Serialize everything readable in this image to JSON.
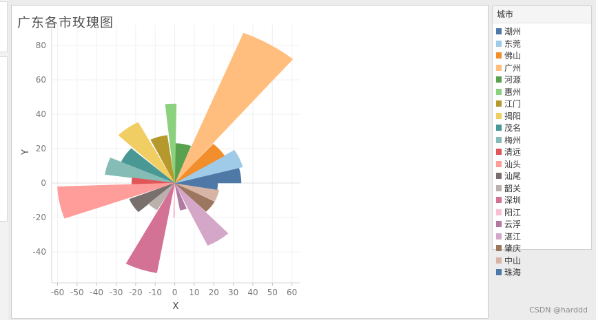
{
  "chart_data": {
    "type": "rose",
    "title": "广东各市玫瑰图",
    "xlabel": "X",
    "ylabel": "Y",
    "xlim": [
      -63,
      64
    ],
    "ylim": [
      -58,
      92
    ],
    "xticks": [
      -60,
      -50,
      -40,
      -30,
      -20,
      -10,
      0,
      10,
      20,
      30,
      40,
      50,
      60
    ],
    "yticks": [
      -40,
      -20,
      0,
      20,
      40,
      60,
      80
    ],
    "legend_title": "城市",
    "legend_position": "right",
    "series": [
      {
        "name": "潮州",
        "color": "#4e79a7",
        "radius": 34,
        "start_deg": 0,
        "end_deg": 15
      },
      {
        "name": "东莞",
        "color": "#a0cbe8",
        "radius": 36,
        "start_deg": 15,
        "end_deg": 32
      },
      {
        "name": "佛山",
        "color": "#f28e2b",
        "radius": 30,
        "start_deg": 32,
        "end_deg": 49
      },
      {
        "name": "广州",
        "color": "#ffbe7d",
        "radius": 94,
        "start_deg": 50,
        "end_deg": 68
      },
      {
        "name": "河源",
        "color": "#59a14f",
        "radius": 23,
        "start_deg": 69,
        "end_deg": 89
      },
      {
        "name": "惠州",
        "color": "#8cd17d",
        "radius": 46,
        "start_deg": 89,
        "end_deg": 96
      },
      {
        "name": "江门",
        "color": "#b6992d",
        "radius": 28,
        "start_deg": 98,
        "end_deg": 116
      },
      {
        "name": "揭阳",
        "color": "#f1ce63",
        "radius": 40,
        "start_deg": 118,
        "end_deg": 136
      },
      {
        "name": "茂名",
        "color": "#499894",
        "radius": 30,
        "start_deg": 138,
        "end_deg": 156
      },
      {
        "name": "梅州",
        "color": "#86bcb6",
        "radius": 36,
        "start_deg": 156,
        "end_deg": 172
      },
      {
        "name": "清远",
        "color": "#e15759",
        "radius": 22,
        "start_deg": 172,
        "end_deg": 182
      },
      {
        "name": "汕头",
        "color": "#ff9d9a",
        "radius": 60,
        "start_deg": 182,
        "end_deg": 200
      },
      {
        "name": "汕尾",
        "color": "#79706e",
        "radius": 25,
        "start_deg": 202,
        "end_deg": 222
      },
      {
        "name": "韶关",
        "color": "#bab0ac",
        "radius": 18,
        "start_deg": 222,
        "end_deg": 240
      },
      {
        "name": "深圳",
        "color": "#d37295",
        "radius": 53,
        "start_deg": 242,
        "end_deg": 260
      },
      {
        "name": "阳江",
        "color": "#fabfd2",
        "radius": 20,
        "start_deg": 268,
        "end_deg": 270
      },
      {
        "name": "云浮",
        "color": "#b07aa1",
        "radius": 16,
        "start_deg": 280,
        "end_deg": 292
      },
      {
        "name": "湛江",
        "color": "#d4a6c8",
        "radius": 40,
        "start_deg": 295,
        "end_deg": 313
      },
      {
        "name": "肇庆",
        "color": "#9d7660",
        "radius": 23,
        "start_deg": 314,
        "end_deg": 332
      },
      {
        "name": "中山",
        "color": "#d7b5a6",
        "radius": 23,
        "start_deg": 333,
        "end_deg": 350
      },
      {
        "name": "珠海",
        "color": "#4e79a7",
        "radius": 22,
        "start_deg": 350,
        "end_deg": 360
      }
    ]
  },
  "watermark": "CSDN @harddd"
}
